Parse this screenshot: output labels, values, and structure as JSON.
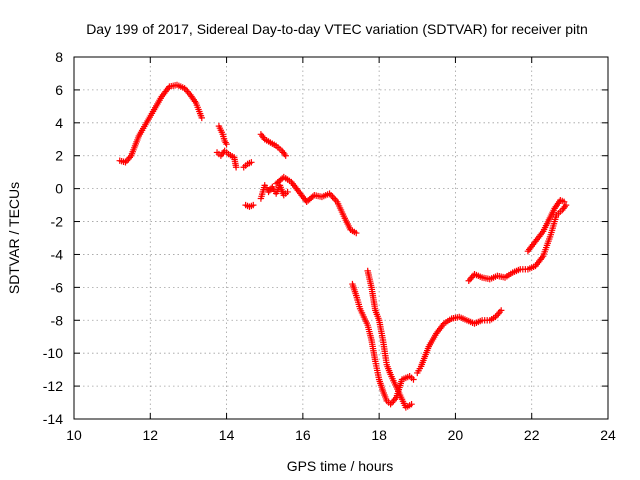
{
  "chart_data": {
    "type": "scatter",
    "title": "Day 199 of 2017, Sidereal Day-to-day VTEC variation (SDTVAR) for receiver pitn",
    "xlabel": "GPS time / hours",
    "ylabel": "SDTVAR / TECUs",
    "xlim": [
      10,
      24
    ],
    "ylim": [
      -14,
      8
    ],
    "xticks": [
      10,
      12,
      14,
      16,
      18,
      20,
      22,
      24
    ],
    "yticks": [
      -14,
      -12,
      -10,
      -8,
      -6,
      -4,
      -2,
      0,
      2,
      4,
      6,
      8
    ],
    "grid": true,
    "marker": "plus",
    "color": "#ff0000",
    "series": [
      {
        "x": [
          11.2,
          11.35,
          11.5,
          11.7,
          11.9,
          12.1,
          12.3,
          12.5,
          12.7,
          12.9,
          13.05,
          13.2,
          13.35
        ],
        "y": [
          1.7,
          1.6,
          2.0,
          3.2,
          4.0,
          4.8,
          5.6,
          6.2,
          6.3,
          6.1,
          5.7,
          5.2,
          4.3
        ]
      },
      {
        "x": [
          13.8,
          13.9,
          13.95,
          14.0
        ],
        "y": [
          3.8,
          3.3,
          2.9,
          2.7
        ]
      },
      {
        "x": [
          13.75,
          13.85,
          13.95,
          14.05,
          14.2,
          14.25
        ],
        "y": [
          2.2,
          2.0,
          2.3,
          2.1,
          1.9,
          1.3
        ]
      },
      {
        "x": [
          14.45,
          14.55,
          14.65
        ],
        "y": [
          1.3,
          1.5,
          1.6
        ]
      },
      {
        "x": [
          14.5,
          14.6,
          14.7
        ],
        "y": [
          -1.0,
          -1.1,
          -1.0
        ]
      },
      {
        "x": [
          14.9,
          15.0,
          15.15,
          15.3,
          15.45,
          15.55
        ],
        "y": [
          3.3,
          3.0,
          2.8,
          2.6,
          2.3,
          2.0
        ]
      },
      {
        "x": [
          14.9,
          15.0,
          15.1,
          15.2,
          15.3,
          15.4,
          15.5,
          15.6
        ],
        "y": [
          -0.6,
          0.2,
          -0.2,
          0.1,
          -0.3,
          0.2,
          -0.4,
          -0.2
        ]
      },
      {
        "x": [
          15.3,
          15.5,
          15.7,
          15.9,
          16.1,
          16.3,
          16.5,
          16.7,
          16.9,
          17.1,
          17.25,
          17.4
        ],
        "y": [
          0.3,
          0.7,
          0.4,
          -0.2,
          -0.8,
          -0.4,
          -0.5,
          -0.3,
          -0.8,
          -1.8,
          -2.5,
          -2.7
        ]
      },
      {
        "x": [
          17.3,
          17.4,
          17.5,
          17.6,
          17.7,
          17.8,
          17.9,
          18.0,
          18.1,
          18.2,
          18.3,
          18.45,
          18.6,
          18.8,
          18.9
        ],
        "y": [
          -5.8,
          -6.5,
          -7.3,
          -7.8,
          -8.3,
          -9.2,
          -10.5,
          -11.6,
          -12.3,
          -12.9,
          -13.1,
          -12.7,
          -11.6,
          -11.4,
          -11.6
        ]
      },
      {
        "x": [
          17.7,
          17.8,
          17.9,
          18.0,
          18.1,
          18.2,
          18.3,
          18.5,
          18.6,
          18.7,
          18.85
        ],
        "y": [
          -5.0,
          -6.0,
          -7.4,
          -8.0,
          -9.2,
          -10.7,
          -11.3,
          -12.3,
          -12.8,
          -13.3,
          -13.1
        ]
      },
      {
        "x": [
          19.0,
          19.1,
          19.2,
          19.3,
          19.5,
          19.7,
          19.9,
          20.1,
          20.3,
          20.5,
          20.7,
          20.9,
          21.05,
          21.2
        ],
        "y": [
          -11.2,
          -10.8,
          -10.2,
          -9.6,
          -8.8,
          -8.2,
          -7.9,
          -7.8,
          -8.0,
          -8.2,
          -8.0,
          -8.0,
          -7.8,
          -7.4
        ]
      },
      {
        "x": [
          20.35,
          20.5,
          20.7,
          20.9,
          21.1,
          21.3,
          21.5,
          21.7,
          21.9,
          22.1,
          22.3,
          22.5,
          22.65,
          22.8,
          22.9
        ],
        "y": [
          -5.6,
          -5.2,
          -5.4,
          -5.5,
          -5.3,
          -5.4,
          -5.1,
          -4.9,
          -4.9,
          -4.7,
          -4.1,
          -2.8,
          -1.6,
          -1.3,
          -1.0
        ]
      },
      {
        "x": [
          21.9,
          22.1,
          22.3,
          22.45,
          22.6,
          22.75,
          22.85
        ],
        "y": [
          -3.8,
          -3.2,
          -2.6,
          -1.9,
          -1.2,
          -0.7,
          -0.8
        ]
      }
    ]
  }
}
